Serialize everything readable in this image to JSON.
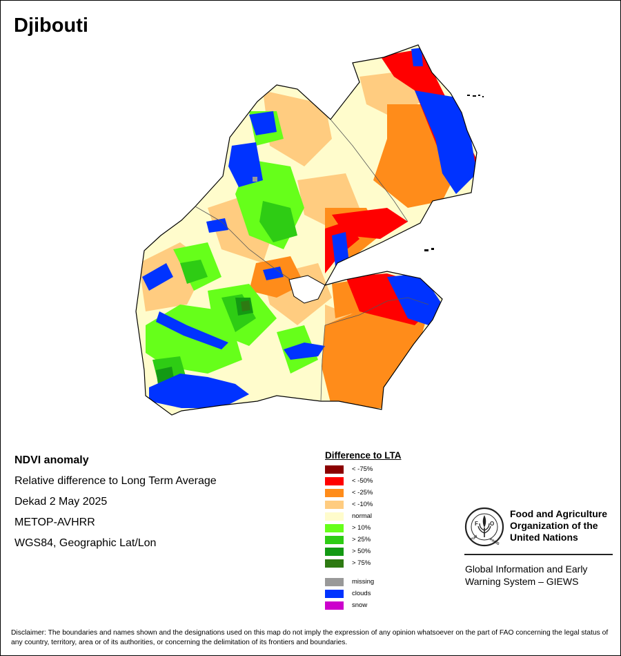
{
  "title": "Djibouti",
  "info": {
    "heading": "NDVI anomaly",
    "subtitle": "Relative difference to Long Term Average",
    "period": "Dekad 2 May 2025",
    "sensor": "METOP-AVHRR",
    "projection": "WGS84, Geographic Lat/Lon"
  },
  "legend": {
    "title": "Difference to LTA",
    "classes": [
      {
        "label": "< -75%",
        "color": "#8b0000"
      },
      {
        "label": "< -50%",
        "color": "#ff0000"
      },
      {
        "label": "< -25%",
        "color": "#ff8c1a"
      },
      {
        "label": "< -10%",
        "color": "#ffcc80"
      },
      {
        "label": "normal",
        "color": "#fffccc"
      },
      {
        "label": "> 10%",
        "color": "#66ff1a"
      },
      {
        "label": "> 25%",
        "color": "#2ecc14"
      },
      {
        "label": "> 50%",
        "color": "#139913"
      },
      {
        "label": "> 75%",
        "color": "#2e7a12"
      }
    ],
    "extra": [
      {
        "label": "missing",
        "color": "#999999"
      },
      {
        "label": "clouds",
        "color": "#0033ff"
      },
      {
        "label": "snow",
        "color": "#cc00cc"
      }
    ]
  },
  "org": {
    "logo_text": "FAO",
    "logo_motto": "FIAT PANIS",
    "name": "Food and Agriculture Organization of the United Nations",
    "system": "Global Information and Early Warning System – GIEWS"
  },
  "disclaimer": "Disclaimer: The boundaries and names shown and the designations used on this map do not imply the expression of any opinion whatsoever on the part of FAO concerning the legal status of any country, territory, area or of its authorities, or concerning the delimitation of its frontiers and boundaries."
}
